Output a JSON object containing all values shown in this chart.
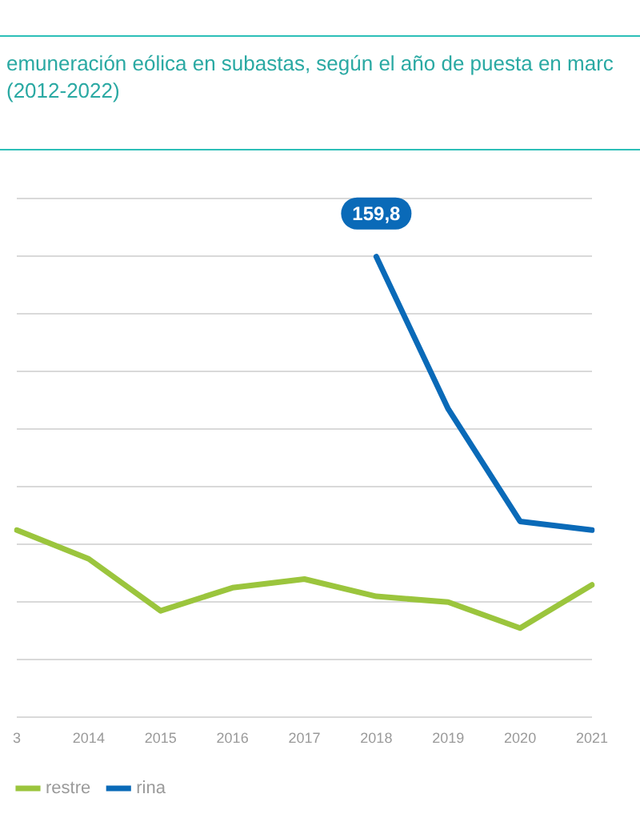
{
  "chart_data": {
    "type": "line",
    "title": "emuneración eólica en subastas, según el año de puesta en marc\n(2012-2022)",
    "categories": [
      "3",
      "2014",
      "2015",
      "2016",
      "2017",
      "2018",
      "2019",
      "2020",
      "2021"
    ],
    "ylim": [
      0,
      180
    ],
    "yticks": [
      {
        "value": 0,
        "label": null
      },
      {
        "value": 20,
        "label": null
      },
      {
        "value": 40,
        "label": null
      },
      {
        "value": 60,
        "label": null
      },
      {
        "value": 80,
        "label": null
      },
      {
        "value": 100,
        "label": null
      },
      {
        "value": 120,
        "label": null
      },
      {
        "value": 140,
        "label": null
      },
      {
        "value": 160,
        "label": null
      },
      {
        "value": 180,
        "label": null
      }
    ],
    "tick_labels": "x",
    "grid": "y",
    "legend": "bottom left",
    "marker": "none",
    "line_style": "solid",
    "series": [
      {
        "name": "restre",
        "color": "#9bc53d",
        "values": [
          65,
          55,
          37,
          45,
          48,
          42,
          40,
          31,
          46
        ]
      },
      {
        "name": "rina",
        "color": "#0a6ab8",
        "values": [
          null,
          null,
          null,
          null,
          null,
          159.8,
          107,
          68,
          65
        ],
        "value_labels": [
          null,
          null,
          null,
          null,
          null,
          "159,8",
          null,
          null,
          null
        ]
      }
    ]
  }
}
